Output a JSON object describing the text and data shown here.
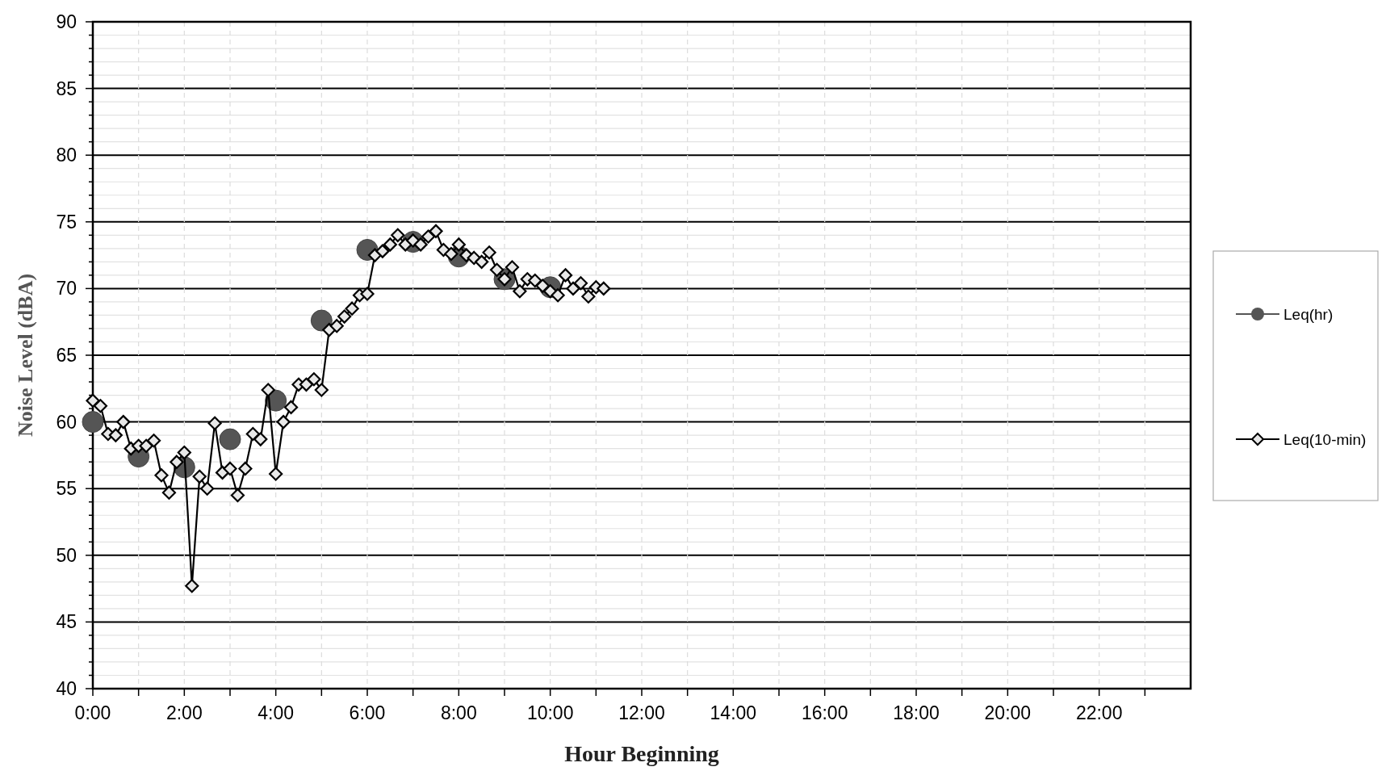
{
  "chart_data": {
    "type": "line",
    "xlabel": "Hour Beginning",
    "ylabel": "Noise Level (dBA)",
    "xlim": [
      0,
      24
    ],
    "ylim": [
      40,
      90
    ],
    "xticks": [
      {
        "value": 0,
        "label": "0:00"
      },
      {
        "value": 1,
        "label": null
      },
      {
        "value": 2,
        "label": "2:00"
      },
      {
        "value": 3,
        "label": null
      },
      {
        "value": 4,
        "label": "4:00"
      },
      {
        "value": 5,
        "label": null
      },
      {
        "value": 6,
        "label": "6:00"
      },
      {
        "value": 7,
        "label": null
      },
      {
        "value": 8,
        "label": "8:00"
      },
      {
        "value": 9,
        "label": null
      },
      {
        "value": 10,
        "label": "10:00"
      },
      {
        "value": 11,
        "label": null
      },
      {
        "value": 12,
        "label": "12:00"
      },
      {
        "value": 13,
        "label": null
      },
      {
        "value": 14,
        "label": "14:00"
      },
      {
        "value": 15,
        "label": null
      },
      {
        "value": 16,
        "label": "16:00"
      },
      {
        "value": 17,
        "label": null
      },
      {
        "value": 18,
        "label": "18:00"
      },
      {
        "value": 19,
        "label": null
      },
      {
        "value": 20,
        "label": "20:00"
      },
      {
        "value": 21,
        "label": null
      },
      {
        "value": 22,
        "label": "22:00"
      },
      {
        "value": 23,
        "label": null
      }
    ],
    "yticks": [
      40,
      {
        "value": 41,
        "label": null
      },
      {
        "value": 42,
        "label": null
      },
      {
        "value": 43,
        "label": null
      },
      {
        "value": 44,
        "label": null
      },
      45,
      {
        "value": 46,
        "label": null
      },
      {
        "value": 47,
        "label": null
      },
      {
        "value": 48,
        "label": null
      },
      {
        "value": 49,
        "label": null
      },
      50,
      {
        "value": 51,
        "label": null
      },
      {
        "value": 52,
        "label": null
      },
      {
        "value": 53,
        "label": null
      },
      {
        "value": 54,
        "label": null
      },
      55,
      {
        "value": 56,
        "label": null
      },
      {
        "value": 57,
        "label": null
      },
      {
        "value": 58,
        "label": null
      },
      {
        "value": 59,
        "label": null
      },
      60,
      {
        "value": 61,
        "label": null
      },
      {
        "value": 62,
        "label": null
      },
      {
        "value": 63,
        "label": null
      },
      {
        "value": 64,
        "label": null
      },
      65,
      {
        "value": 66,
        "label": null
      },
      {
        "value": 67,
        "label": null
      },
      {
        "value": 68,
        "label": null
      },
      {
        "value": 69,
        "label": null
      },
      70,
      {
        "value": 71,
        "label": null
      },
      {
        "value": 72,
        "label": null
      },
      {
        "value": 73,
        "label": null
      },
      {
        "value": 74,
        "label": null
      },
      75,
      {
        "value": 76,
        "label": null
      },
      {
        "value": 77,
        "label": null
      },
      {
        "value": 78,
        "label": null
      },
      {
        "value": 79,
        "label": null
      },
      80,
      {
        "value": 81,
        "label": null
      },
      {
        "value": 82,
        "label": null
      },
      {
        "value": 83,
        "label": null
      },
      {
        "value": 84,
        "label": null
      },
      85,
      {
        "value": 86,
        "label": null
      },
      {
        "value": 87,
        "label": null
      },
      {
        "value": 88,
        "label": null
      },
      {
        "value": 89,
        "label": null
      },
      90
    ],
    "grid": true,
    "legend": "right",
    "series": [
      {
        "name": "Leq(hr)",
        "type": "scatter",
        "marker": "circle",
        "color": "#555555",
        "x": [
          0,
          1,
          2,
          3,
          4,
          5,
          6,
          7,
          8,
          9,
          10
        ],
        "values": [
          60.0,
          57.4,
          56.6,
          58.7,
          61.6,
          67.6,
          72.9,
          73.5,
          72.4,
          70.7,
          70.1
        ]
      },
      {
        "name": "Leq(10-min)",
        "marker": "diamond",
        "color": "#000000",
        "x": [
          0,
          0.1667,
          0.3333,
          0.5,
          0.6667,
          0.8333,
          1,
          1.1667,
          1.3333,
          1.5,
          1.6667,
          1.8333,
          2,
          2.1667,
          2.3333,
          2.5,
          2.6667,
          2.8333,
          3,
          3.1667,
          3.3333,
          3.5,
          3.6667,
          3.8333,
          4,
          4.1667,
          4.3333,
          4.5,
          4.6667,
          4.8333,
          5,
          5.1667,
          5.3333,
          5.5,
          5.6667,
          5.8333,
          6,
          6.1667,
          6.3333,
          6.5,
          6.6667,
          6.8333,
          7,
          7.1667,
          7.3333,
          7.5,
          7.6667,
          7.8333,
          8,
          8.1667,
          8.3333,
          8.5,
          8.6667,
          8.8333,
          9,
          9.1667,
          9.3333,
          9.5,
          9.6667,
          9.8333,
          10,
          10.1667,
          10.3333,
          10.5,
          10.6667,
          10.8333,
          11,
          11.1667
        ],
        "values": [
          61.6,
          61.2,
          59.1,
          59.0,
          60.0,
          58.0,
          58.2,
          58.2,
          58.6,
          56.0,
          54.7,
          57.0,
          57.7,
          47.7,
          55.9,
          55.0,
          59.9,
          56.2,
          56.5,
          54.5,
          56.5,
          59.1,
          58.7,
          62.4,
          56.1,
          60.0,
          61.1,
          62.8,
          62.8,
          63.2,
          62.4,
          66.9,
          67.2,
          67.9,
          68.5,
          69.5,
          69.6,
          72.5,
          72.8,
          73.3,
          74.0,
          73.3,
          73.6,
          73.3,
          73.9,
          74.3,
          72.9,
          72.6,
          73.3,
          72.5,
          72.3,
          72.0,
          72.7,
          71.4,
          70.7,
          71.6,
          69.8,
          70.7,
          70.6,
          70.2,
          69.8,
          69.5,
          71.0,
          70.0,
          70.4,
          69.4,
          70.1,
          70.0
        ]
      }
    ]
  }
}
